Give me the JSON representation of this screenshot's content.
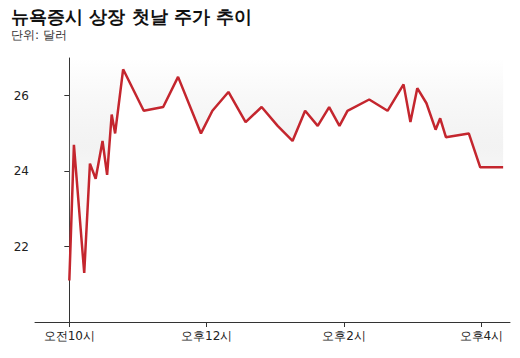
{
  "chart_data": {
    "type": "line",
    "title": "뉴욕증시 상장 첫날 주가 추이",
    "subtitle": "단위: 달러",
    "x": [
      0,
      4,
      13,
      18,
      23,
      29,
      33,
      37,
      40,
      47,
      65,
      82,
      95,
      115,
      125,
      139,
      154,
      168,
      182,
      195,
      206,
      217,
      227,
      236,
      243,
      262,
      278,
      292,
      298,
      304,
      312,
      320,
      324,
      329,
      349,
      359,
      379
    ],
    "values": [
      21.1,
      24.7,
      21.3,
      24.2,
      23.8,
      24.8,
      23.9,
      25.5,
      25.0,
      26.7,
      25.6,
      25.7,
      26.5,
      25.0,
      25.6,
      26.1,
      25.3,
      25.7,
      25.2,
      24.8,
      25.6,
      25.2,
      25.7,
      25.2,
      25.6,
      25.9,
      25.6,
      26.3,
      25.3,
      26.2,
      25.8,
      25.1,
      25.4,
      24.9,
      25.0,
      24.1,
      24.1
    ],
    "color": "#c4262e",
    "xlim": [
      -30,
      385
    ],
    "xticks": [
      {
        "value": 0,
        "label": "오전10시"
      },
      {
        "value": 120,
        "label": "오후12시"
      },
      {
        "value": 240,
        "label": "오후2시"
      },
      {
        "value": 360,
        "label": "오후4시"
      }
    ],
    "ylim": [
      20,
      27
    ],
    "yticks": [
      22,
      24,
      26
    ],
    "grid": false
  }
}
